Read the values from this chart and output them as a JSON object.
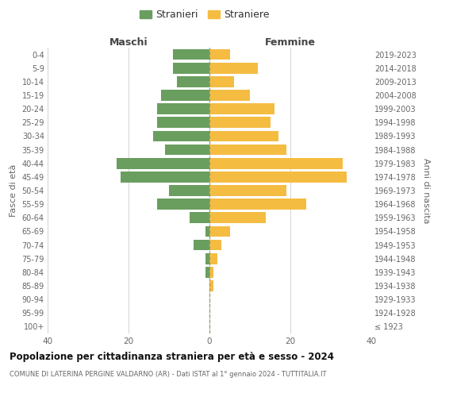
{
  "age_groups": [
    "100+",
    "95-99",
    "90-94",
    "85-89",
    "80-84",
    "75-79",
    "70-74",
    "65-69",
    "60-64",
    "55-59",
    "50-54",
    "45-49",
    "40-44",
    "35-39",
    "30-34",
    "25-29",
    "20-24",
    "15-19",
    "10-14",
    "5-9",
    "0-4"
  ],
  "birth_years": [
    "≤ 1923",
    "1924-1928",
    "1929-1933",
    "1934-1938",
    "1939-1943",
    "1944-1948",
    "1949-1953",
    "1954-1958",
    "1959-1963",
    "1964-1968",
    "1969-1973",
    "1974-1978",
    "1979-1983",
    "1984-1988",
    "1989-1993",
    "1994-1998",
    "1999-2003",
    "2004-2008",
    "2009-2013",
    "2014-2018",
    "2019-2023"
  ],
  "males": [
    0,
    0,
    0,
    0,
    1,
    1,
    4,
    1,
    5,
    13,
    10,
    22,
    23,
    11,
    14,
    13,
    13,
    12,
    8,
    9,
    9
  ],
  "females": [
    0,
    0,
    0,
    1,
    1,
    2,
    3,
    5,
    14,
    24,
    19,
    34,
    33,
    19,
    17,
    15,
    16,
    10,
    6,
    12,
    5
  ],
  "male_color": "#6a9e5f",
  "female_color": "#f5bc42",
  "male_label": "Stranieri",
  "female_label": "Straniere",
  "maschi_label": "Maschi",
  "femmine_label": "Femmine",
  "fasce_eta_label": "Fasce di età",
  "anni_nascita_label": "Anni di nascita",
  "xlim": 40,
  "title": "Popolazione per cittadinanza straniera per età e sesso - 2024",
  "subtitle": "COMUNE DI LATERINA PERGINE VALDARNO (AR) - Dati ISTAT al 1° gennaio 2024 - TUTTITALIA.IT",
  "bg_color": "#ffffff",
  "grid_color": "#cccccc",
  "bar_height": 0.8
}
